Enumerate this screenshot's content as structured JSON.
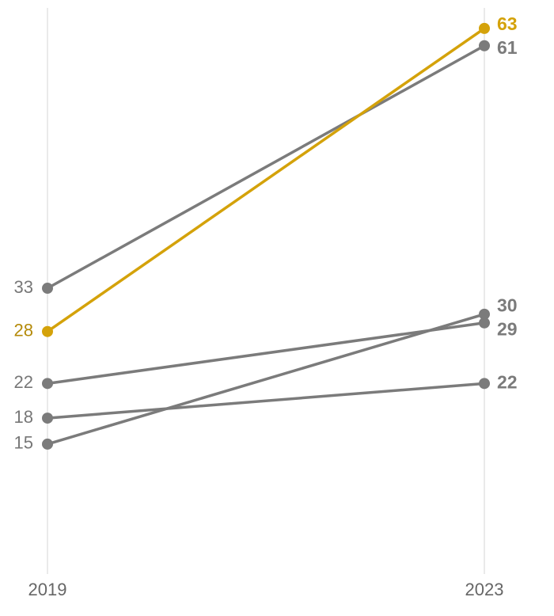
{
  "chart_data": {
    "type": "slope",
    "categories": [
      "2019",
      "2023"
    ],
    "ylim": [
      0,
      65
    ],
    "series": [
      {
        "color": "#7b7b7b",
        "values": [
          33,
          61
        ]
      },
      {
        "color": "#7b7b7b",
        "values": [
          22,
          29
        ]
      },
      {
        "color": "#7b7b7b",
        "values": [
          18,
          22
        ]
      },
      {
        "color": "#7b7b7b",
        "values": [
          15,
          30
        ]
      },
      {
        "color": "#d4a20a",
        "values": [
          28,
          63
        ]
      }
    ]
  }
}
